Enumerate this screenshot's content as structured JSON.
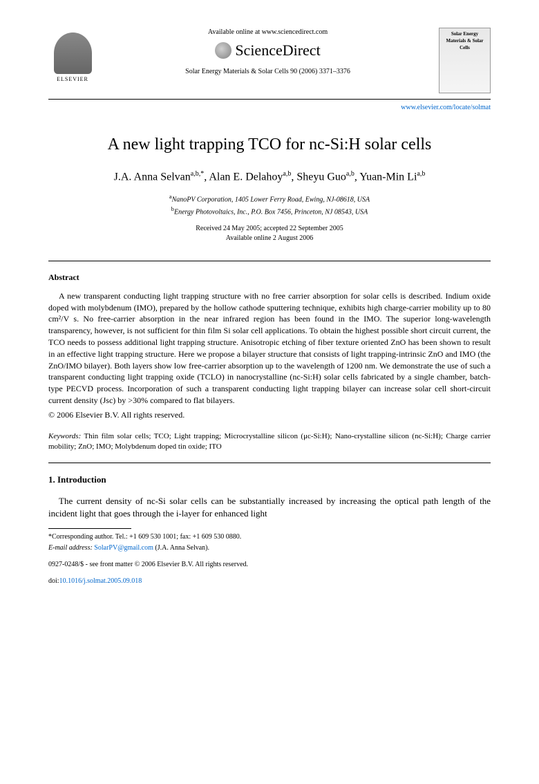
{
  "header": {
    "elsevier_label": "ELSEVIER",
    "available_text": "Available online at www.sciencedirect.com",
    "sciencedirect_label": "ScienceDirect",
    "journal_ref": "Solar Energy Materials & Solar Cells 90 (2006) 3371–3376",
    "journal_cover_title": "Solar Energy Materials & Solar Cells",
    "journal_link": "www.elsevier.com/locate/solmat"
  },
  "title": "A new light trapping TCO for nc-Si:H solar cells",
  "authors_html": "J.A. Anna Selvan<sup>a,b,*</sup>, Alan E. Delahoy<sup>a,b</sup>, Sheyu Guo<sup>a,b</sup>, Yuan-Min Li<sup>a,b</sup>",
  "affiliations": {
    "a": "NanoPV Corporation, 1405 Lower Ferry Road, Ewing, NJ-08618, USA",
    "b": "Energy Photovoltaics, Inc., P.O. Box 7456, Princeton, NJ 08543, USA"
  },
  "dates": {
    "received": "Received 24 May 2005; accepted 22 September 2005",
    "online": "Available online 2 August 2006"
  },
  "abstract": {
    "heading": "Abstract",
    "body": "A new transparent conducting light trapping structure with no free carrier absorption for solar cells is described. Indium oxide doped with molybdenum (IMO), prepared by the hollow cathode sputtering technique, exhibits high charge-carrier mobility up to 80 cm²/V s. No free-carrier absorption in the near infrared region has been found in the IMO. The superior long-wavelength transparency, however, is not sufficient for thin film Si solar cell applications. To obtain the highest possible short circuit current, the TCO needs to possess additional light trapping structure. Anisotropic etching of fiber texture oriented ZnO has been shown to result in an effective light trapping structure. Here we propose a bilayer structure that consists of light trapping-intrinsic ZnO and IMO (the ZnO/IMO bilayer). Both layers show low free-carrier absorption up to the wavelength of 1200 nm. We demonstrate the use of such a transparent conducting light trapping oxide (TCLO) in nanocrystalline (nc-Si:H) solar cells fabricated by a single chamber, batch-type PECVD process. Incorporation of such a transparent conducting light trapping bilayer can increase solar cell short-circuit current density (Jsc) by >30% compared to flat bilayers.",
    "copyright": "© 2006 Elsevier B.V. All rights reserved."
  },
  "keywords": {
    "label": "Keywords:",
    "text": " Thin film solar cells; TCO; Light trapping; Microcrystalline silicon (μc-Si:H); Nano-crystalline silicon (nc-Si:H); Charge carrier mobility; ZnO; IMO; Molybdenum doped tin oxide; ITO"
  },
  "introduction": {
    "heading": "1. Introduction",
    "body": "The current density of nc-Si solar cells can be substantially increased by increasing the optical path length of the incident light that goes through the i-layer for enhanced light"
  },
  "footnotes": {
    "corresponding": "*Corresponding author. Tel.: +1 609 530 1001; fax: +1 609 530 0880.",
    "email_label": "E-mail address: ",
    "email": "SolarPV@gmail.com",
    "email_suffix": " (J.A. Anna Selvan)."
  },
  "footer": {
    "issn": "0927-0248/$ - see front matter © 2006 Elsevier B.V. All rights reserved.",
    "doi_label": "doi:",
    "doi": "10.1016/j.solmat.2005.09.018"
  }
}
